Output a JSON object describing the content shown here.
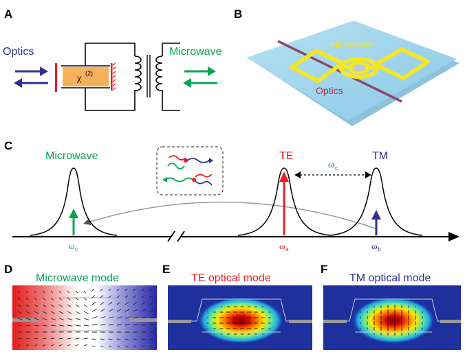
{
  "panels": {
    "A": {
      "letter": "A",
      "optics_label": "Optics",
      "chi_label": "χ",
      "chi_superscript": "(2)",
      "microwave_label": "Microwave"
    },
    "B": {
      "letter": "B",
      "microwave_label": "Microwave",
      "optics_label": "Optics"
    },
    "C": {
      "letter": "C",
      "microwave_label": "Microwave",
      "te_label": "TE",
      "tm_label": "TM",
      "spacing_label": "ω",
      "spacing_sub": "c",
      "axis_omega_c": "ω",
      "axis_omega_c_sub": "c",
      "axis_omega_a": "ω",
      "axis_omega_a_sub": "a",
      "axis_omega_b": "ω",
      "axis_omega_b_sub": "b"
    },
    "D": {
      "letter": "D",
      "title": "Microwave mode"
    },
    "E": {
      "letter": "E",
      "title": "TE optical mode"
    },
    "F": {
      "letter": "F",
      "title": "TM optical mode"
    }
  },
  "colors": {
    "optics_blue": "#2e3192",
    "microwave_green": "#00a651",
    "te_red": "#ed1c24",
    "tm_blue": "#2e3192",
    "chip_blue": "#9fd3ec",
    "gold": "#f5e625",
    "crystal_orange": "#f7b05a"
  }
}
